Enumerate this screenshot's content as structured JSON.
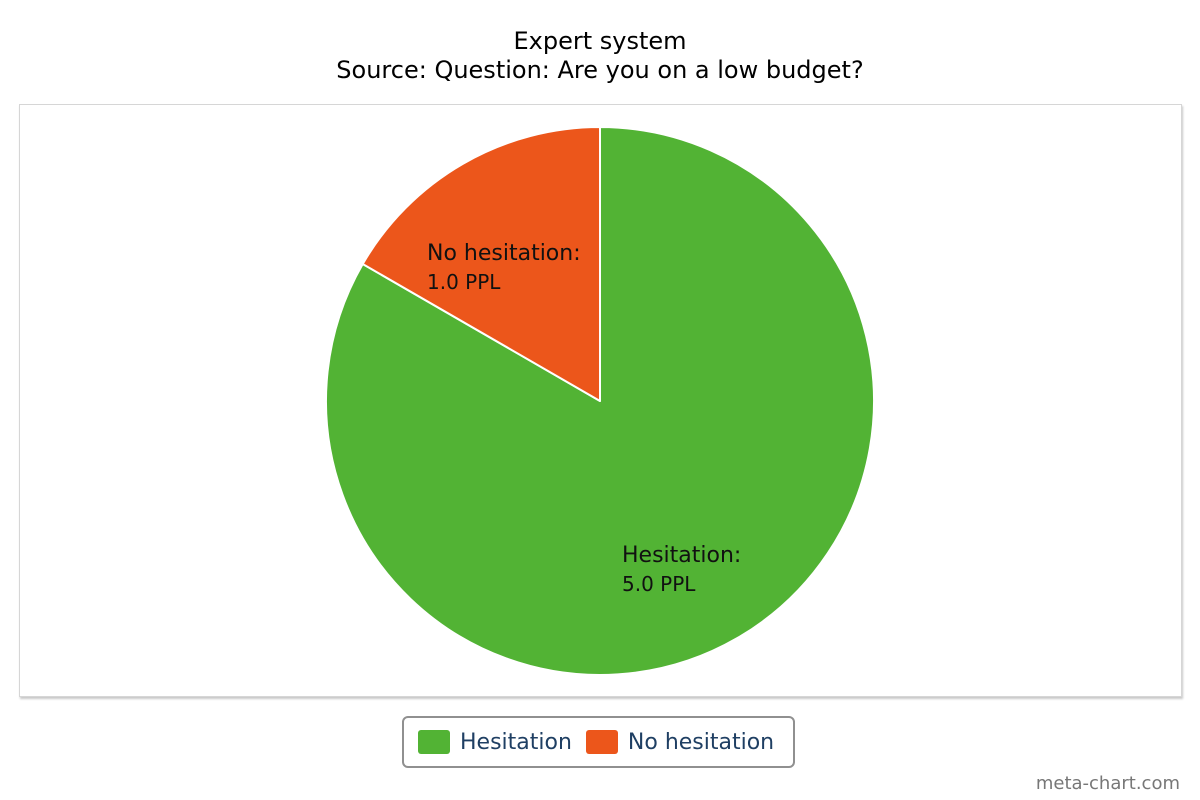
{
  "chart_data": {
    "type": "pie",
    "title": "Expert system",
    "subtitle": "Source: Question: Are you on a low budget?",
    "unit": "PPL",
    "slices": [
      {
        "label": "Hesitation",
        "value": 5.0,
        "display_value": "5.0 PPL",
        "color": "#52b334"
      },
      {
        "label": "No hesitation",
        "value": 1.0,
        "display_value": "1.0 PPL",
        "color": "#ec561b"
      }
    ],
    "legend": {
      "position": "bottom-center",
      "items": [
        "Hesitation",
        "No hesitation"
      ]
    }
  },
  "credit": "meta-chart.com"
}
